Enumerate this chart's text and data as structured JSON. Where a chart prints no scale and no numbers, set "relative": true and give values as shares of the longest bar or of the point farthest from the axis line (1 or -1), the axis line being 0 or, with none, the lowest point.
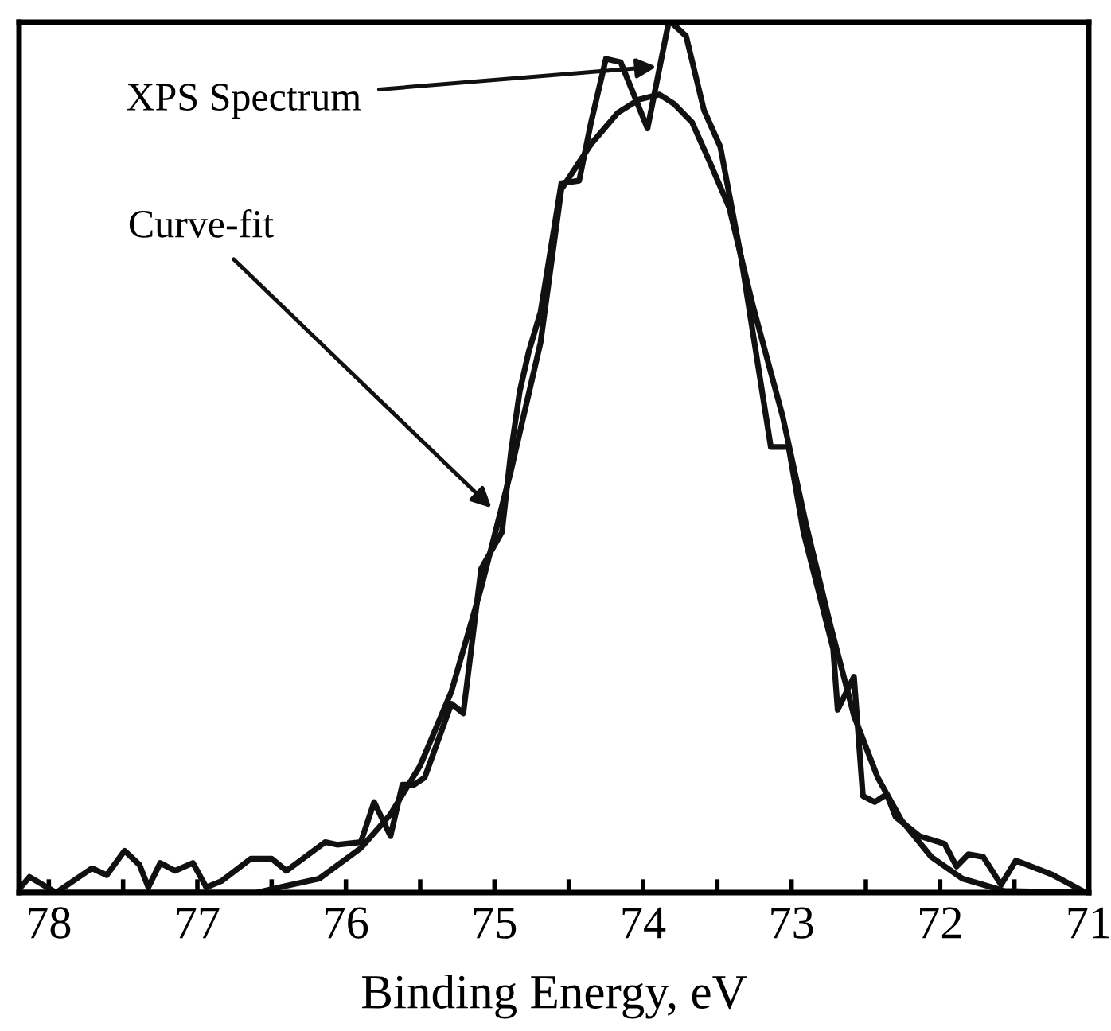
{
  "chart_data": {
    "type": "line",
    "relative": true,
    "xlabel": "Binding Energy, eV",
    "xlim": [
      78.2,
      71.0
    ],
    "xticks": [
      78,
      {
        "value": 77.5,
        "label": null
      },
      77,
      {
        "value": 76.5,
        "label": null
      },
      76,
      {
        "value": 75.5,
        "label": null
      },
      75,
      {
        "value": 74.5,
        "label": null
      },
      74,
      {
        "value": 73.5,
        "label": null
      },
      73,
      {
        "value": 72.5,
        "label": null
      },
      72,
      {
        "value": 71.5,
        "label": null
      },
      71
    ],
    "tick_labels": "x",
    "grid": false,
    "legend": false,
    "marker": "none",
    "line_style": "solid",
    "series": [
      {
        "color": "#111111",
        "x": [
          78.19,
          78.13,
          77.95,
          77.71,
          77.61,
          77.49,
          77.39,
          77.33,
          77.25,
          77.15,
          77.03,
          76.94,
          76.84,
          76.64,
          76.5,
          76.4,
          76.14,
          76.06,
          75.9,
          75.81,
          75.7,
          75.62,
          75.54,
          75.47,
          75.29,
          75.21,
          75.09,
          74.95,
          74.89,
          74.83,
          74.77,
          74.69,
          74.55,
          74.43,
          74.35,
          74.25,
          74.15,
          73.97,
          73.83,
          73.81,
          73.71,
          73.59,
          73.48,
          73.34,
          73.14,
          73.02,
          72.92,
          72.72,
          72.69,
          72.58,
          72.52,
          72.44,
          72.36,
          72.3,
          72.14,
          71.97,
          71.89,
          71.81,
          71.71,
          71.59,
          71.49,
          71.25,
          71.02
        ],
        "values": [
          0.006,
          0.018,
          0.0,
          0.028,
          0.02,
          0.048,
          0.032,
          0.006,
          0.034,
          0.025,
          0.034,
          0.006,
          0.013,
          0.039,
          0.039,
          0.025,
          0.058,
          0.055,
          0.058,
          0.104,
          0.065,
          0.124,
          0.124,
          0.132,
          0.217,
          0.206,
          0.372,
          0.414,
          0.505,
          0.576,
          0.621,
          0.667,
          0.815,
          0.818,
          0.885,
          0.958,
          0.954,
          0.878,
          0.998,
          1.0,
          0.984,
          0.899,
          0.857,
          0.73,
          0.512,
          0.512,
          0.414,
          0.28,
          0.21,
          0.248,
          0.111,
          0.104,
          0.113,
          0.087,
          0.065,
          0.056,
          0.03,
          0.044,
          0.041,
          0.009,
          0.037,
          0.021,
          0.0
        ]
      },
      {
        "color": "#111111",
        "x": [
          78.19,
          76.6,
          76.42,
          76.18,
          75.9,
          75.7,
          75.5,
          75.29,
          75.09,
          74.89,
          74.69,
          74.55,
          74.35,
          74.17,
          74.03,
          73.89,
          73.79,
          73.67,
          73.55,
          73.42,
          73.26,
          73.06,
          72.9,
          72.74,
          72.58,
          72.42,
          72.26,
          72.06,
          71.85,
          71.57,
          71.02
        ],
        "values": [
          0.0,
          0.0,
          0.007,
          0.016,
          0.051,
          0.09,
          0.146,
          0.231,
          0.35,
          0.484,
          0.632,
          0.808,
          0.86,
          0.896,
          0.911,
          0.917,
          0.906,
          0.885,
          0.839,
          0.787,
          0.674,
          0.547,
          0.421,
          0.308,
          0.203,
          0.132,
          0.083,
          0.041,
          0.016,
          0.002,
          0.0
        ]
      }
    ],
    "annotations": [
      {
        "text": "XPS Spectrum",
        "x": 73.91,
        "y": 0.949
      },
      {
        "text": "Curve-fit",
        "x": 75.02,
        "y": 0.442
      }
    ]
  }
}
